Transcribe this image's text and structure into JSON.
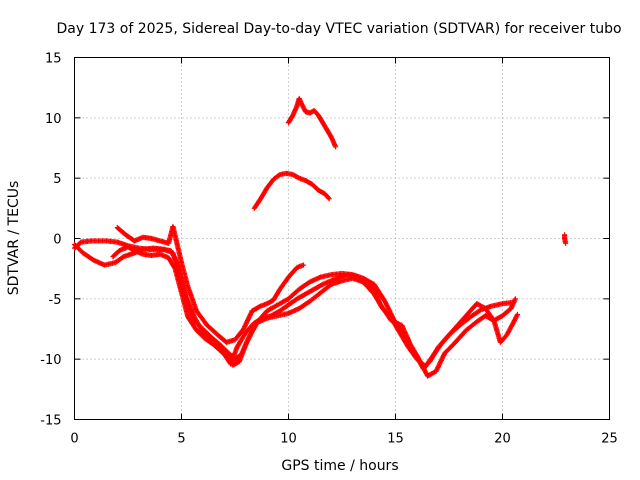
{
  "chart_data": {
    "type": "scatter",
    "title": "Day 173 of 2025, Sidereal Day-to-day VTEC variation (SDTVAR) for receiver tubo",
    "xlabel": "GPS time / hours",
    "ylabel": "SDTVAR / TECUs",
    "xlim": [
      0,
      25
    ],
    "ylim": [
      -15,
      15
    ],
    "xticks": [
      "0",
      "5",
      "10",
      "15",
      "20",
      "25"
    ],
    "yticks": [
      "-15",
      "-10",
      "-5",
      "0",
      "5",
      "10",
      "15"
    ],
    "grid": true,
    "marker": "plus",
    "color": "#ff0000",
    "series": [
      {
        "points": [
          [
            0.0,
            -0.8
          ],
          [
            0.3,
            -0.3
          ],
          [
            0.8,
            -0.2
          ],
          [
            1.5,
            -0.2
          ],
          [
            2.0,
            -0.3
          ],
          [
            2.5,
            -0.6
          ],
          [
            3.0,
            -0.8
          ],
          [
            3.5,
            -0.9
          ],
          [
            4.0,
            -0.9
          ],
          [
            4.5,
            -1.0
          ],
          [
            4.8,
            -2.0
          ],
          [
            5.0,
            -3.5
          ],
          [
            5.3,
            -5.5
          ],
          [
            5.6,
            -6.8
          ],
          [
            6.0,
            -7.5
          ],
          [
            6.4,
            -8.2
          ],
          [
            6.8,
            -8.8
          ],
          [
            7.2,
            -9.5
          ],
          [
            7.5,
            -10.0
          ],
          [
            7.8,
            -9.6
          ],
          [
            8.2,
            -8.0
          ],
          [
            8.6,
            -6.8
          ],
          [
            9.0,
            -6.0
          ],
          [
            9.5,
            -5.5
          ],
          [
            10.0,
            -5.0
          ],
          [
            10.5,
            -4.2
          ],
          [
            11.0,
            -3.6
          ],
          [
            11.5,
            -3.2
          ],
          [
            12.0,
            -3.0
          ],
          [
            12.5,
            -2.9
          ],
          [
            13.0,
            -3.0
          ],
          [
            13.5,
            -3.3
          ],
          [
            14.0,
            -3.8
          ],
          [
            14.5,
            -5.2
          ],
          [
            15.0,
            -7.0
          ],
          [
            15.5,
            -8.5
          ],
          [
            16.0,
            -9.8
          ],
          [
            16.3,
            -10.8
          ],
          [
            16.6,
            -10.2
          ],
          [
            17.0,
            -9.0
          ],
          [
            17.5,
            -8.0
          ],
          [
            18.0,
            -7.2
          ],
          [
            18.5,
            -6.5
          ],
          [
            19.0,
            -5.9
          ],
          [
            19.5,
            -5.6
          ],
          [
            20.0,
            -5.4
          ],
          [
            20.5,
            -5.3
          ]
        ]
      },
      {
        "points": [
          [
            0.0,
            -0.5
          ],
          [
            0.4,
            -1.2
          ],
          [
            0.9,
            -1.8
          ],
          [
            1.4,
            -2.2
          ],
          [
            1.9,
            -2.0
          ],
          [
            2.3,
            -1.5
          ],
          [
            2.8,
            -1.2
          ],
          [
            3.2,
            -0.9
          ],
          [
            3.7,
            -0.8
          ],
          [
            4.2,
            -0.9
          ],
          [
            4.6,
            -1.2
          ],
          [
            4.9,
            -2.8
          ],
          [
            5.2,
            -4.8
          ],
          [
            5.6,
            -6.5
          ],
          [
            6.0,
            -7.8
          ],
          [
            6.5,
            -8.6
          ],
          [
            7.0,
            -9.2
          ],
          [
            7.4,
            -10.5
          ],
          [
            7.7,
            -10.2
          ],
          [
            8.0,
            -8.8
          ],
          [
            8.5,
            -7.0
          ],
          [
            9.0,
            -6.6
          ],
          [
            9.5,
            -6.4
          ],
          [
            10.0,
            -6.2
          ],
          [
            10.5,
            -5.8
          ],
          [
            11.0,
            -5.2
          ],
          [
            11.5,
            -4.5
          ],
          [
            12.0,
            -3.8
          ],
          [
            12.5,
            -3.5
          ],
          [
            13.0,
            -3.3
          ],
          [
            13.5,
            -3.6
          ],
          [
            14.0,
            -4.2
          ],
          [
            14.3,
            -5.5
          ],
          [
            14.8,
            -6.8
          ],
          [
            15.3,
            -7.2
          ],
          [
            15.7,
            -8.8
          ],
          [
            16.1,
            -10.0
          ],
          [
            16.5,
            -11.4
          ],
          [
            16.9,
            -11.0
          ],
          [
            17.3,
            -9.5
          ],
          [
            17.8,
            -8.6
          ],
          [
            18.3,
            -7.6
          ],
          [
            18.8,
            -6.9
          ],
          [
            19.2,
            -6.4
          ],
          [
            19.6,
            -6.8
          ],
          [
            19.9,
            -8.6
          ],
          [
            20.2,
            -8.0
          ],
          [
            20.5,
            -7.0
          ],
          [
            20.7,
            -6.3
          ]
        ]
      },
      {
        "points": [
          [
            2.0,
            0.9
          ],
          [
            2.4,
            0.3
          ],
          [
            2.8,
            -0.2
          ],
          [
            3.2,
            0.1
          ],
          [
            3.6,
            0.0
          ],
          [
            4.0,
            -0.2
          ],
          [
            4.4,
            -0.4
          ],
          [
            4.6,
            1.0
          ],
          [
            4.8,
            -0.5
          ],
          [
            5.0,
            -2.0
          ],
          [
            5.3,
            -4.0
          ],
          [
            5.7,
            -6.0
          ],
          [
            6.2,
            -7.2
          ],
          [
            6.7,
            -8.0
          ],
          [
            7.1,
            -8.6
          ],
          [
            7.5,
            -8.4
          ],
          [
            7.9,
            -7.5
          ],
          [
            8.3,
            -6.0
          ],
          [
            8.7,
            -5.6
          ],
          [
            9.0,
            -5.4
          ],
          [
            9.3,
            -5.1
          ],
          [
            9.6,
            -4.2
          ],
          [
            10.0,
            -3.2
          ],
          [
            10.4,
            -2.4
          ],
          [
            10.7,
            -2.2
          ]
        ]
      },
      {
        "points": [
          [
            1.8,
            -1.5
          ],
          [
            2.1,
            -1.0
          ],
          [
            2.5,
            -0.7
          ],
          [
            2.8,
            -1.0
          ],
          [
            3.2,
            -1.3
          ],
          [
            3.6,
            -1.4
          ],
          [
            4.0,
            -1.3
          ],
          [
            4.4,
            -1.6
          ],
          [
            4.7,
            -2.5
          ],
          [
            5.0,
            -4.5
          ],
          [
            5.3,
            -6.5
          ],
          [
            5.7,
            -7.6
          ],
          [
            6.1,
            -8.3
          ],
          [
            6.5,
            -8.8
          ],
          [
            7.0,
            -9.6
          ],
          [
            7.3,
            -10.4
          ],
          [
            7.6,
            -9.0
          ],
          [
            8.0,
            -7.8
          ],
          [
            8.4,
            -7.0
          ],
          [
            8.8,
            -6.6
          ],
          [
            9.2,
            -6.4
          ],
          [
            9.6,
            -6.0
          ],
          [
            10.0,
            -5.5
          ],
          [
            10.4,
            -5.0
          ],
          [
            10.8,
            -4.6
          ],
          [
            11.2,
            -4.2
          ],
          [
            11.6,
            -3.8
          ],
          [
            12.0,
            -3.5
          ],
          [
            12.4,
            -3.2
          ],
          [
            12.8,
            -3.0
          ],
          [
            13.2,
            -3.2
          ],
          [
            13.6,
            -3.8
          ],
          [
            14.0,
            -4.6
          ],
          [
            14.4,
            -5.8
          ],
          [
            14.8,
            -6.6
          ],
          [
            15.2,
            -7.8
          ],
          [
            15.6,
            -9.0
          ],
          [
            16.0,
            -10.0
          ],
          [
            16.4,
            -10.6
          ],
          [
            16.8,
            -9.6
          ],
          [
            17.2,
            -8.6
          ],
          [
            17.6,
            -7.8
          ],
          [
            18.0,
            -7.0
          ],
          [
            18.4,
            -6.2
          ],
          [
            18.8,
            -5.4
          ],
          [
            19.2,
            -5.8
          ],
          [
            19.6,
            -6.8
          ],
          [
            20.0,
            -6.4
          ],
          [
            20.4,
            -5.8
          ],
          [
            20.6,
            -5.0
          ]
        ]
      },
      {
        "points": [
          [
            8.4,
            2.5
          ],
          [
            8.7,
            3.3
          ],
          [
            9.0,
            4.2
          ],
          [
            9.3,
            4.9
          ],
          [
            9.6,
            5.3
          ],
          [
            9.9,
            5.4
          ],
          [
            10.2,
            5.3
          ],
          [
            10.5,
            5.0
          ],
          [
            10.8,
            4.8
          ],
          [
            11.1,
            4.5
          ],
          [
            11.4,
            4.0
          ],
          [
            11.7,
            3.7
          ],
          [
            11.9,
            3.3
          ]
        ]
      },
      {
        "points": [
          [
            10.0,
            9.6
          ],
          [
            10.2,
            10.2
          ],
          [
            10.4,
            11.0
          ],
          [
            10.5,
            11.6
          ],
          [
            10.6,
            11.2
          ],
          [
            10.8,
            10.5
          ],
          [
            11.0,
            10.4
          ],
          [
            11.2,
            10.6
          ],
          [
            11.4,
            10.2
          ],
          [
            11.6,
            9.6
          ],
          [
            11.8,
            9.0
          ],
          [
            12.0,
            8.4
          ],
          [
            12.2,
            7.6
          ]
        ]
      },
      {
        "points": [
          [
            22.9,
            0.3
          ],
          [
            22.9,
            0.0
          ],
          [
            22.95,
            -0.4
          ]
        ]
      }
    ]
  }
}
